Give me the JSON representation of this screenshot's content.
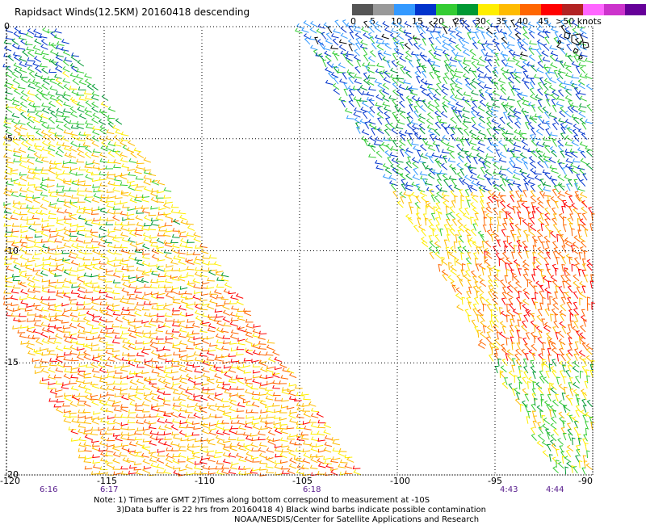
{
  "title": "Rapidsact Winds(12.5KM) 20160418 descending",
  "colorbar": {
    "colors": [
      "#555555",
      "#999999",
      "#3399ff",
      "#0033cc",
      "#33cc33",
      "#009933",
      "#ffee00",
      "#ffbb00",
      "#ff6600",
      "#ff0000",
      "#b22222",
      "#ff66ff",
      "#cc33cc",
      "#660099"
    ],
    "labels": [
      "0",
      "5",
      "10",
      "15",
      "20",
      "25",
      "30",
      "35",
      "40",
      "45",
      ">50 knots"
    ]
  },
  "lat_labels": [
    "0",
    "-5",
    "-10",
    "-15",
    "-20"
  ],
  "lon_labels": [
    "-120",
    "-115",
    "-110",
    "-105",
    "-100",
    "-95",
    "-90"
  ],
  "time_labels": [
    "6:16",
    "6:17",
    "6:18",
    "4:43",
    "4:44"
  ],
  "notes": [
    "Note: 1) Times are GMT 2)Times along bottom correspond to measurement at -10S",
    "3)Data buffer is 22 hrs from 20160418 4) Black wind barbs indicate possible contamination",
    "NOAA/NESDIS/Center for Satellite Applications and Research"
  ]
}
